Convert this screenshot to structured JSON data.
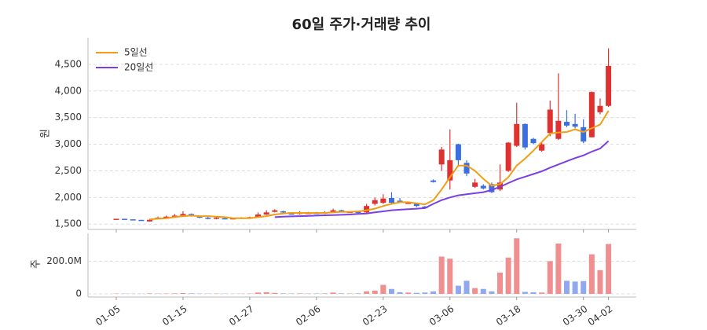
{
  "chart_data": {
    "type": "candlestick",
    "title": "60일 주가·거래량 추이",
    "ylabel": "원",
    "categories": [
      "01-05",
      null,
      null,
      null,
      null,
      null,
      null,
      null,
      "01-15",
      null,
      null,
      null,
      null,
      null,
      null,
      null,
      "01-27",
      null,
      null,
      null,
      null,
      null,
      null,
      null,
      "02-06",
      null,
      null,
      null,
      null,
      null,
      null,
      null,
      "02-23",
      null,
      null,
      null,
      null,
      null,
      null,
      null,
      "03-06",
      null,
      null,
      null,
      null,
      null,
      null,
      null,
      "03-18",
      null,
      null,
      null,
      null,
      null,
      null,
      null,
      "03-30",
      null,
      null,
      "04-02"
    ],
    "open": [
      1600,
      1600,
      1590,
      1580,
      1550,
      1600,
      1620,
      1640,
      1660,
      1690,
      1650,
      1620,
      1600,
      1610,
      1600,
      1610,
      1620,
      1630,
      1680,
      1730,
      1740,
      1700,
      1690,
      1700,
      1710,
      1700,
      1720,
      1760,
      1720,
      1730,
      1720,
      1880,
      1900,
      1990,
      1940,
      1900,
      1880,
      1830,
      2320,
      2620,
      2320,
      3000,
      2650,
      2200,
      2220,
      2250,
      2150,
      2500,
      2970,
      3380,
      3100,
      2880,
      3210,
      3100,
      3420,
      3380,
      3320,
      3130,
      3600,
      3720
    ],
    "high": [
      1600,
      1600,
      1590,
      1580,
      1590,
      1640,
      1660,
      1690,
      1740,
      1700,
      1660,
      1640,
      1630,
      1620,
      1620,
      1630,
      1640,
      1720,
      1760,
      1780,
      1750,
      1710,
      1740,
      1730,
      1730,
      1740,
      1790,
      1770,
      1740,
      1740,
      1880,
      2000,
      2060,
      2100,
      1990,
      1920,
      1900,
      1840,
      2340,
      2950,
      3280,
      3010,
      2700,
      2350,
      2250,
      2280,
      2620,
      3040,
      3780,
      3390,
      3120,
      3050,
      3820,
      4330,
      3640,
      3570,
      3470,
      3990,
      3860,
      4800
    ],
    "low": [
      1600,
      1595,
      1585,
      1575,
      1545,
      1590,
      1610,
      1630,
      1650,
      1640,
      1610,
      1590,
      1590,
      1590,
      1595,
      1600,
      1610,
      1620,
      1670,
      1720,
      1700,
      1680,
      1680,
      1690,
      1690,
      1690,
      1710,
      1720,
      1710,
      1700,
      1710,
      1850,
      1880,
      1880,
      1900,
      1880,
      1820,
      1790,
      2280,
      2500,
      2150,
      2600,
      2400,
      2180,
      2150,
      2080,
      2120,
      2480,
      2950,
      2900,
      3000,
      2860,
      3150,
      3080,
      3320,
      3300,
      3020,
      3130,
      3560,
      3700
    ],
    "close": [
      1600,
      1595,
      1585,
      1575,
      1580,
      1620,
      1640,
      1660,
      1690,
      1650,
      1620,
      1600,
      1620,
      1600,
      1610,
      1620,
      1630,
      1680,
      1720,
      1760,
      1720,
      1690,
      1720,
      1710,
      1700,
      1720,
      1760,
      1740,
      1730,
      1720,
      1840,
      1950,
      1980,
      1900,
      1920,
      1900,
      1840,
      1800,
      2290,
      2900,
      2700,
      2700,
      2450,
      2280,
      2170,
      2100,
      2280,
      3030,
      3380,
      2940,
      3020,
      3000,
      3650,
      3440,
      3350,
      3330,
      3050,
      3980,
      3720,
      4470
    ],
    "up_color": "#e03131",
    "down_color": "#3b6fe0",
    "lines": [
      {
        "name": "5일선",
        "color": "#f29d12",
        "values": [
          null,
          null,
          null,
          null,
          1590,
          1600,
          1610,
          1630,
          1650,
          1660,
          1650,
          1650,
          1640,
          1630,
          1610,
          1610,
          1610,
          1630,
          1650,
          1680,
          1700,
          1710,
          1710,
          1710,
          1710,
          1710,
          1720,
          1730,
          1730,
          1740,
          1760,
          1790,
          1840,
          1880,
          1910,
          1910,
          1890,
          1870,
          1950,
          2150,
          2380,
          2600,
          2600,
          2500,
          2350,
          2220,
          2250,
          2380,
          2600,
          2730,
          2880,
          3040,
          3200,
          3220,
          3230,
          3280,
          3230,
          3300,
          3370,
          3630
        ]
      },
      {
        "name": "20일선",
        "color": "#7b3fe4",
        "values": [
          null,
          null,
          null,
          null,
          null,
          null,
          null,
          null,
          null,
          null,
          null,
          null,
          null,
          null,
          null,
          null,
          null,
          null,
          null,
          1630,
          1640,
          1645,
          1650,
          1655,
          1660,
          1665,
          1670,
          1675,
          1680,
          1690,
          1700,
          1720,
          1740,
          1760,
          1770,
          1780,
          1790,
          1800,
          1880,
          1950,
          2000,
          2040,
          2060,
          2080,
          2100,
          2140,
          2200,
          2270,
          2340,
          2390,
          2440,
          2490,
          2560,
          2620,
          2680,
          2740,
          2790,
          2860,
          2920,
          3060
        ]
      }
    ],
    "legend": "upper left",
    "grid": true,
    "ylim": [
      1400,
      5000
    ],
    "yticks": [
      {
        "value": 1500,
        "label": "1,500"
      },
      {
        "value": 2000,
        "label": "2,000"
      },
      {
        "value": 2500,
        "label": "2,500"
      },
      {
        "value": 3000,
        "label": "3,000"
      },
      {
        "value": 3500,
        "label": "3,500"
      },
      {
        "value": 4000,
        "label": "4,000"
      },
      {
        "value": 4500,
        "label": "4,500"
      }
    ],
    "volume": {
      "ylabel": "주",
      "up_color": "#ef8f8f",
      "down_color": "#8fa8ef",
      "ylim": [
        0,
        370000000
      ],
      "yticks": [
        0,
        {
          "value": 200000000,
          "label": "200.0M"
        }
      ],
      "values": [
        2000000,
        1500000,
        1000000,
        1000000,
        3000000,
        2000000,
        2500000,
        3000000,
        5000000,
        3000000,
        2000000,
        1500000,
        2000000,
        1500000,
        1000000,
        1500000,
        2000000,
        8000000,
        10000000,
        6000000,
        3000000,
        2500000,
        3000000,
        2000000,
        2500000,
        3000000,
        8000000,
        3000000,
        2500000,
        3000000,
        15000000,
        20000000,
        55000000,
        30000000,
        10000000,
        8000000,
        6000000,
        8000000,
        15000000,
        228000000,
        215000000,
        50000000,
        80000000,
        35000000,
        30000000,
        15000000,
        130000000,
        222000000,
        340000000,
        12000000,
        10000000,
        8000000,
        200000000,
        308000000,
        80000000,
        75000000,
        78000000,
        242000000,
        145000000,
        305000000
      ]
    }
  }
}
